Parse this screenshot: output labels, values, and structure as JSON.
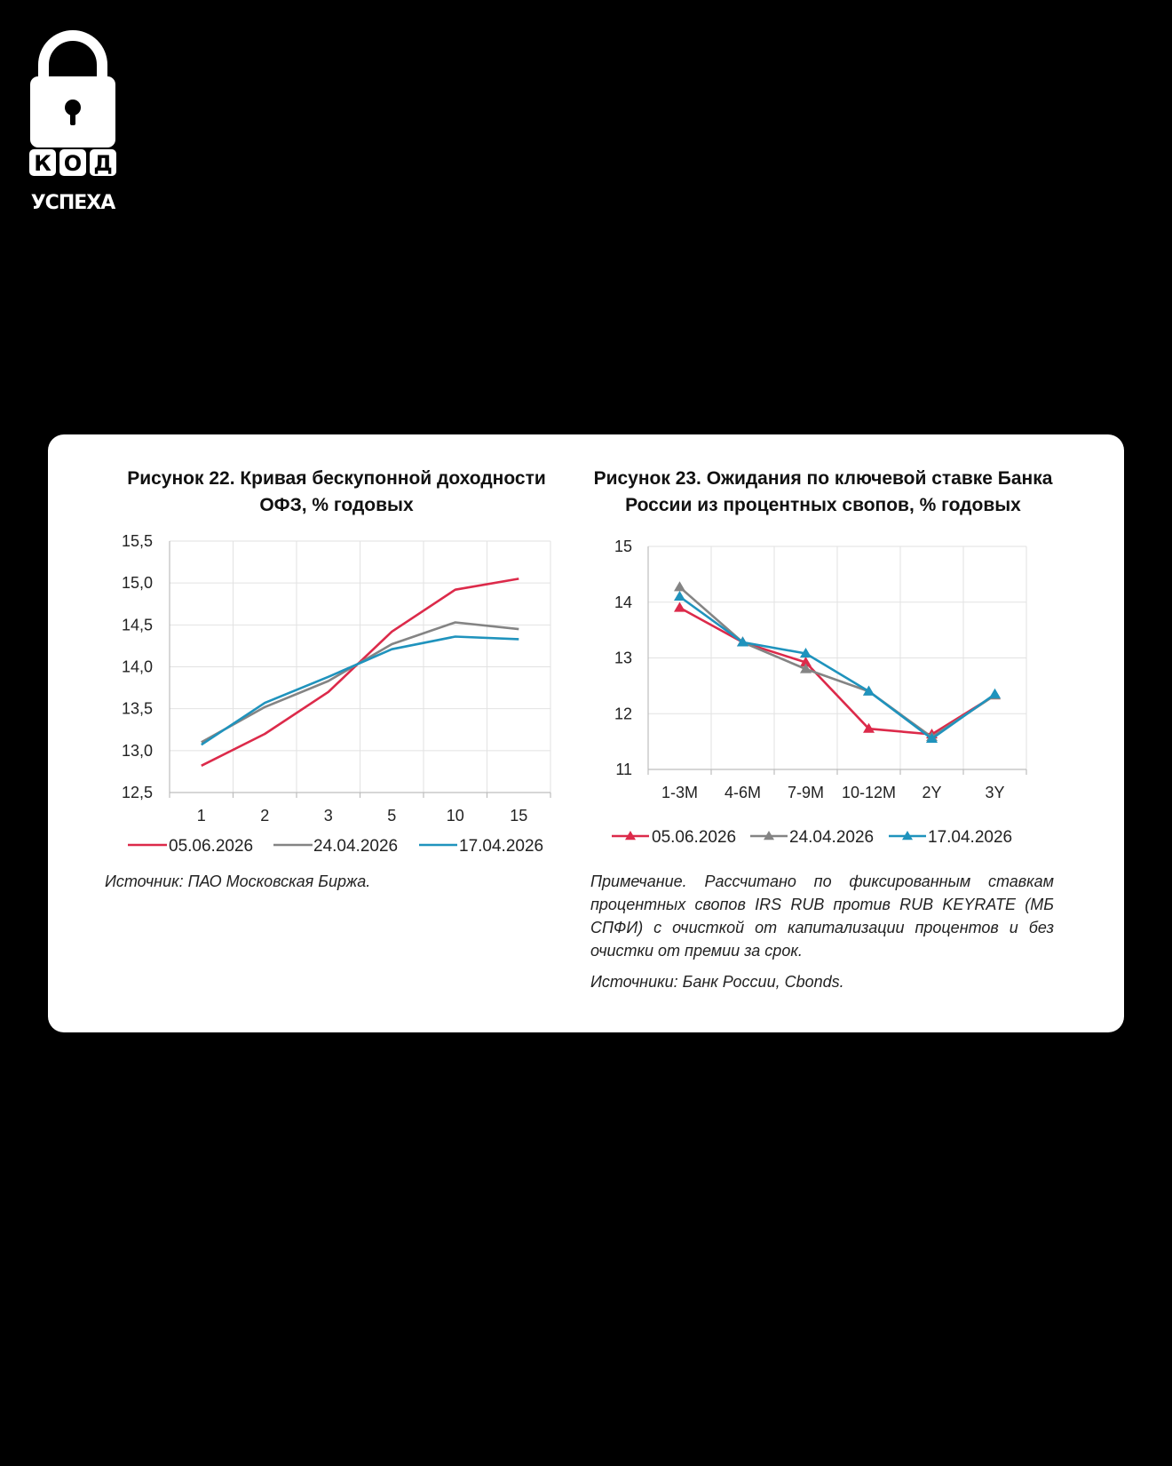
{
  "logo": {
    "brand_letters": [
      "К",
      "О",
      "Д"
    ],
    "brand_word": "УСПЕХА",
    "icon": "padlock-icon"
  },
  "fig22": {
    "title_line1": "Рисунок 22. Кривая бескупонной доходности",
    "title_line2": "ОФЗ, % годовых",
    "source": "Источник: ПАО Московская Биржа."
  },
  "fig23": {
    "title_line1": "Рисунок 23. Ожидания по ключевой ставке Банка",
    "title_line2": "России из процентных свопов, % годовых",
    "note": "Примечание. Рассчитано по фиксированным ставкам процентных свопов IRS RUB против RUB KEYRATE (МБ СПФИ) с очисткой от капитализации процентов и без очистки от премии за срок.",
    "sources": "Источники: Банк России, Cbonds."
  },
  "chart_data": [
    {
      "type": "line",
      "categories": [
        "1",
        "2",
        "3",
        "5",
        "10",
        "15"
      ],
      "ylim": [
        12.5,
        15.5
      ],
      "yticks": [
        "12,5",
        "13,0",
        "13,5",
        "14,0",
        "14,5",
        "15,0",
        "15,5"
      ],
      "ytick_values": [
        12.5,
        13.0,
        13.5,
        14.0,
        14.5,
        15.0,
        15.5
      ],
      "grid": true,
      "legend_position": "bottom",
      "series": [
        {
          "name": "05.06.2026",
          "color": "#dc2a4a",
          "values": [
            12.82,
            13.2,
            13.7,
            14.42,
            14.92,
            15.05
          ]
        },
        {
          "name": "24.04.2026",
          "color": "#848484",
          "values": [
            13.1,
            13.52,
            13.83,
            14.27,
            14.53,
            14.45
          ]
        },
        {
          "name": "17.04.2026",
          "color": "#1f93bd",
          "values": [
            13.07,
            13.57,
            13.88,
            14.21,
            14.36,
            14.33
          ]
        }
      ]
    },
    {
      "type": "line",
      "categories": [
        "1-3M",
        "4-6M",
        "7-9M",
        "10-12M",
        "2Y",
        "3Y"
      ],
      "ylim": [
        11,
        15
      ],
      "yticks": [
        "11",
        "12",
        "13",
        "14",
        "15"
      ],
      "ytick_values": [
        11,
        12,
        13,
        14,
        15
      ],
      "grid": true,
      "markers": "triangle",
      "legend_position": "bottom",
      "series": [
        {
          "name": "05.06.2026",
          "color": "#dc2a4a",
          "values": [
            13.9,
            13.28,
            12.92,
            11.73,
            11.63,
            12.33
          ]
        },
        {
          "name": "24.04.2026",
          "color": "#848484",
          "values": [
            14.27,
            13.28,
            12.8,
            12.4,
            11.58,
            12.33
          ]
        },
        {
          "name": "17.04.2026",
          "color": "#1f93bd",
          "values": [
            14.1,
            13.28,
            13.08,
            12.4,
            11.55,
            12.35
          ]
        }
      ]
    }
  ]
}
